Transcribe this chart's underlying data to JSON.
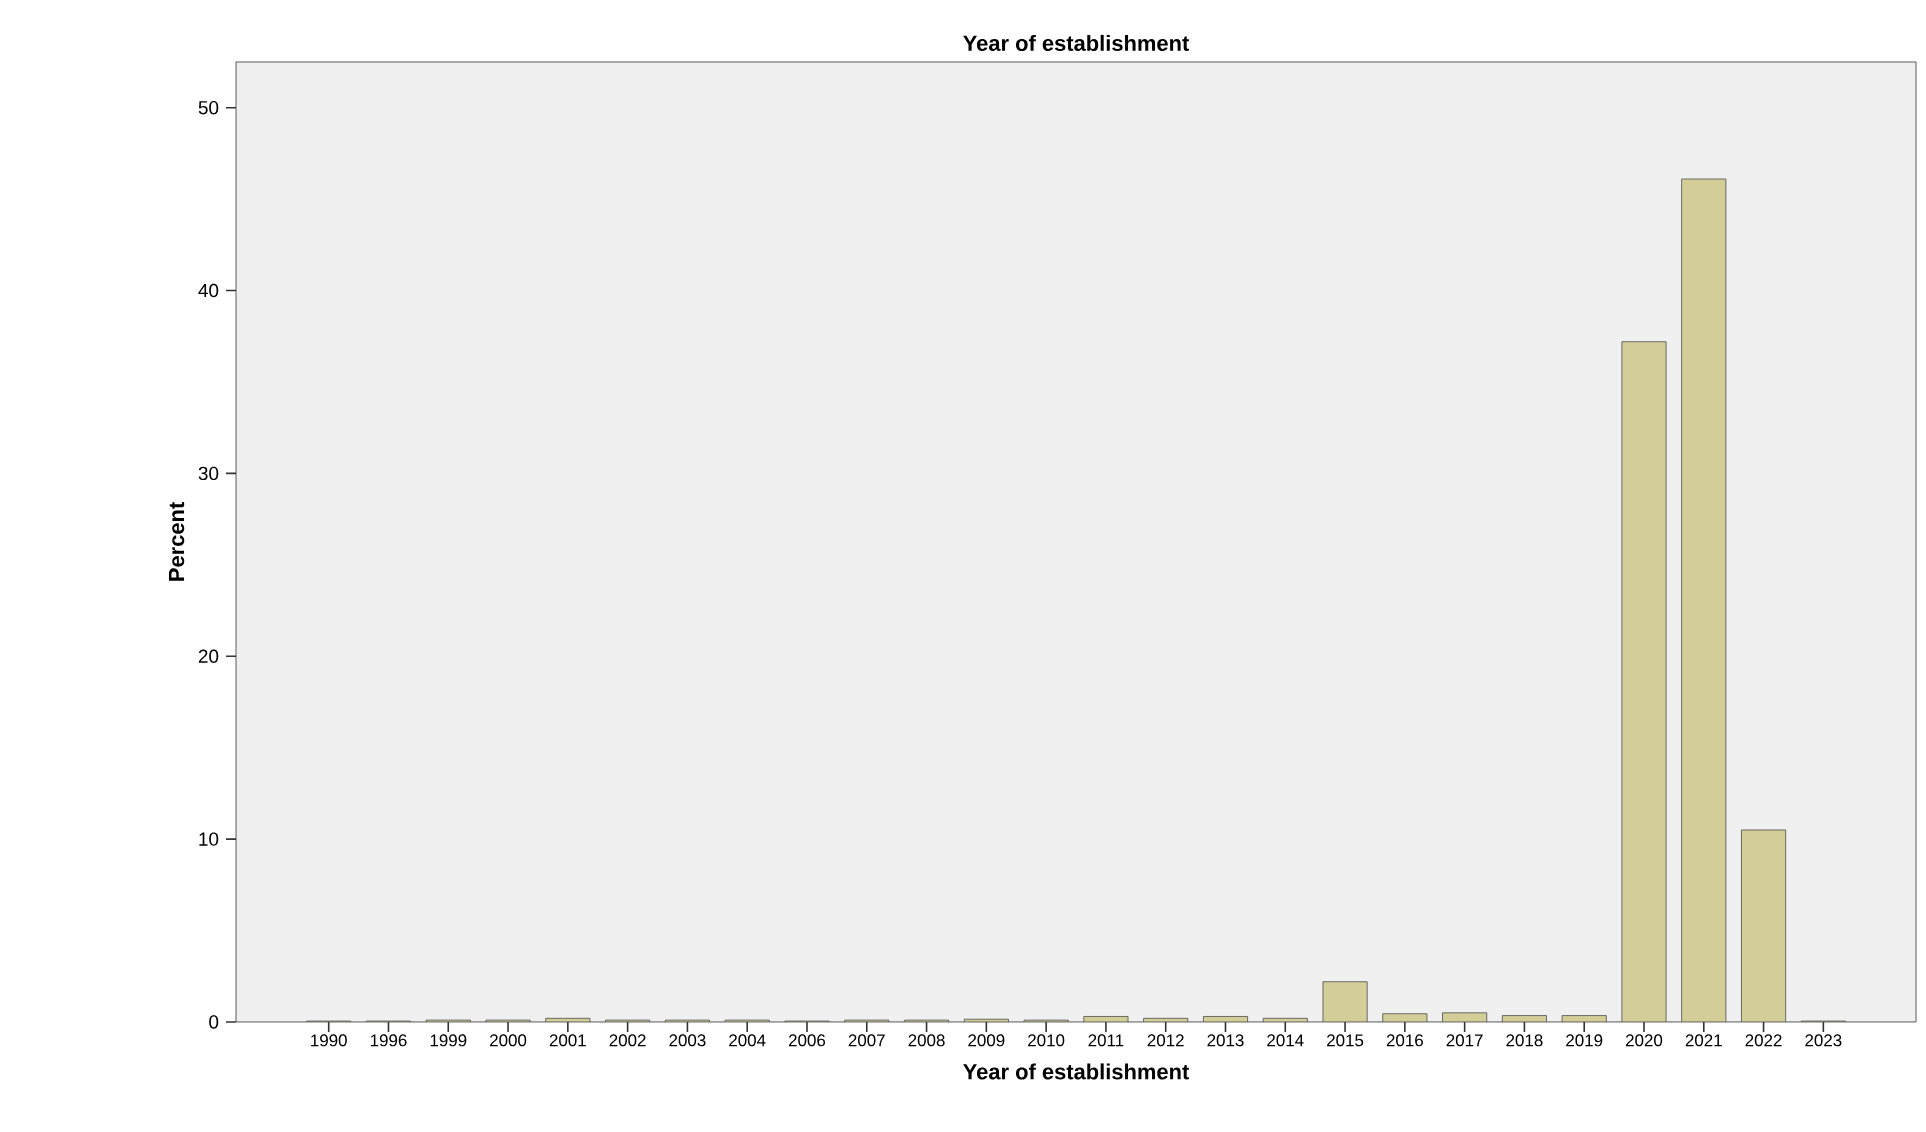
{
  "chart_data": {
    "type": "bar",
    "title": "Year of establishment",
    "xlabel": "Year of establishment",
    "ylabel": "Percent",
    "categories": [
      "1990",
      "1996",
      "1999",
      "2000",
      "2001",
      "2002",
      "2003",
      "2004",
      "2006",
      "2007",
      "2008",
      "2009",
      "2010",
      "2011",
      "2012",
      "2013",
      "2014",
      "2015",
      "2016",
      "2017",
      "2018",
      "2019",
      "2020",
      "2021",
      "2022",
      "2023"
    ],
    "values": [
      0.05,
      0.05,
      0.1,
      0.1,
      0.2,
      0.1,
      0.1,
      0.1,
      0.05,
      0.1,
      0.1,
      0.15,
      0.1,
      0.3,
      0.2,
      0.3,
      0.2,
      2.2,
      0.45,
      0.5,
      0.35,
      0.35,
      37.2,
      46.1,
      10.5,
      0.05
    ],
    "color": "#d3ce98",
    "ylim": [
      0,
      52.5
    ],
    "yticks": [
      0,
      10,
      20,
      30,
      40,
      50
    ],
    "grid": false
  }
}
